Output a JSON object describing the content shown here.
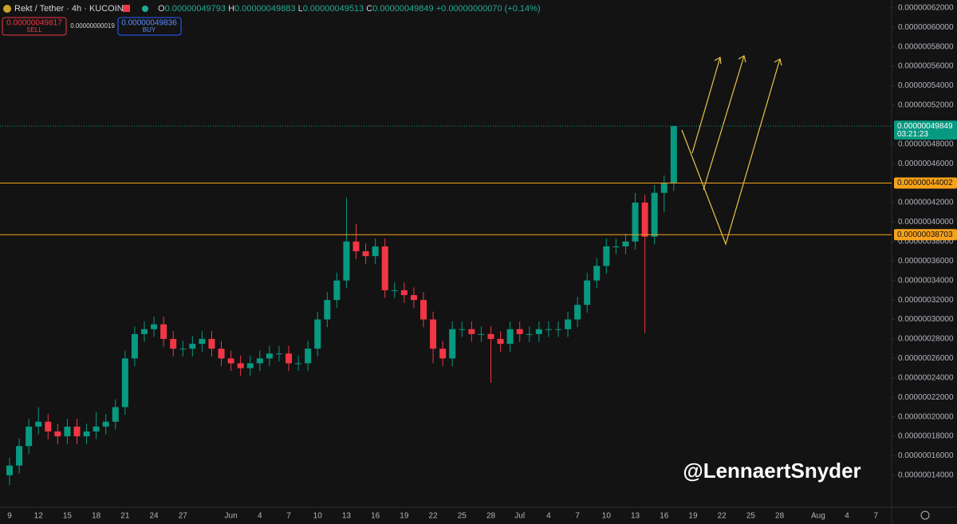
{
  "chart_data": {
    "type": "candlestick",
    "symbol": "Rekt / Tether · 4h · KUCOIN",
    "quote": [
      {
        "key": "O",
        "text": "0.00000049793"
      },
      {
        "key": "H",
        "text": "0.00000049883"
      },
      {
        "key": "L",
        "text": "0.00000049513"
      },
      {
        "key": "C",
        "text": "0.00000049849"
      }
    ],
    "change": "+0.00000000070 (+0.14%)",
    "sell": {
      "price": "0.00000049817",
      "label": "SELL"
    },
    "spread": "0.00000000019",
    "buy": {
      "price": "0.00000049836",
      "label": "BUY"
    },
    "watermark": "@LennaertSnyder",
    "up_color": "#089981",
    "down_color": "#f23645",
    "grid": false,
    "categories": [
      "9",
      null,
      null,
      "12",
      null,
      null,
      "15",
      null,
      null,
      "18",
      null,
      null,
      "21",
      null,
      null,
      "24",
      null,
      null,
      "27",
      null,
      null,
      null,
      null,
      "Jun",
      null,
      null,
      "4",
      null,
      null,
      "7",
      null,
      null,
      "10",
      null,
      null,
      "13",
      null,
      null,
      "16",
      null,
      null,
      "19",
      null,
      null,
      "22",
      null,
      null,
      "25",
      null,
      null,
      "28",
      null,
      null,
      "Jul",
      null,
      null,
      "4",
      null,
      null,
      "7",
      null,
      null,
      "10",
      null,
      null,
      "13",
      null,
      null,
      "16",
      null,
      null,
      "19",
      null,
      null,
      "22",
      null,
      null,
      "25",
      null,
      null,
      "28",
      null,
      null,
      null,
      "Aug",
      null,
      null,
      "4",
      null,
      null,
      "7"
    ],
    "open": [
      1.4e-07,
      1.5e-07,
      1.7e-07,
      1.9e-07,
      1.95e-07,
      1.85e-07,
      1.8e-07,
      1.9e-07,
      1.8e-07,
      1.85e-07,
      1.9e-07,
      1.95e-07,
      2.1e-07,
      2.6e-07,
      2.85e-07,
      2.9e-07,
      2.95e-07,
      2.8e-07,
      2.7e-07,
      2.7e-07,
      2.75e-07,
      2.8e-07,
      2.7e-07,
      2.6e-07,
      2.55e-07,
      2.5e-07,
      2.55e-07,
      2.6e-07,
      2.65e-07,
      2.65e-07,
      2.55e-07,
      2.55e-07,
      2.7e-07,
      3e-07,
      3.2e-07,
      3.4e-07,
      3.8e-07,
      3.7e-07,
      3.65e-07,
      3.75e-07,
      3.3e-07,
      3.3e-07,
      3.25e-07,
      3.2e-07,
      3e-07,
      2.7e-07,
      2.6e-07,
      2.9e-07,
      2.9e-07,
      2.85e-07,
      2.85e-07,
      2.8e-07,
      2.75e-07,
      2.9e-07,
      2.85e-07,
      2.85e-07,
      2.9e-07,
      2.9e-07,
      2.9e-07,
      3e-07,
      3.15e-07,
      3.4e-07,
      3.55e-07,
      3.75e-07,
      3.75e-07,
      3.8e-07,
      4.2e-07,
      3.85e-07,
      4.3e-07,
      4.4e-07,
      null,
      null,
      null,
      null,
      null,
      null,
      null,
      null,
      null,
      null,
      null,
      null,
      null,
      null,
      null,
      null,
      null,
      null,
      null,
      null,
      null
    ],
    "high": [
      1.58e-07,
      1.78e-07,
      1.98e-07,
      2.1e-07,
      2.03e-07,
      1.93e-07,
      1.98e-07,
      1.98e-07,
      1.93e-07,
      2.05e-07,
      2.03e-07,
      2.18e-07,
      2.68e-07,
      2.93e-07,
      2.98e-07,
      3.03e-07,
      3.03e-07,
      2.88e-07,
      2.78e-07,
      2.83e-07,
      2.88e-07,
      2.88e-07,
      2.78e-07,
      2.68e-07,
      2.63e-07,
      2.63e-07,
      2.68e-07,
      2.73e-07,
      2.73e-07,
      2.73e-07,
      2.63e-07,
      2.78e-07,
      3.08e-07,
      3.28e-07,
      3.48e-07,
      4.25e-07,
      3.98e-07,
      3.78e-07,
      3.83e-07,
      3.83e-07,
      3.38e-07,
      3.38e-07,
      3.33e-07,
      3.28e-07,
      3.08e-07,
      2.78e-07,
      2.98e-07,
      2.98e-07,
      2.98e-07,
      2.93e-07,
      2.93e-07,
      2.88e-07,
      2.98e-07,
      2.98e-07,
      2.93e-07,
      2.98e-07,
      2.98e-07,
      2.98e-07,
      3.08e-07,
      3.23e-07,
      3.48e-07,
      3.63e-07,
      3.83e-07,
      3.83e-07,
      3.88e-07,
      4.3e-07,
      4.28e-07,
      4.38e-07,
      4.48e-07,
      4.988e-07,
      null,
      null,
      null,
      null,
      null,
      null,
      null,
      null,
      null,
      null,
      null,
      null,
      null,
      null,
      null,
      null,
      null,
      null,
      null,
      null,
      null
    ],
    "low": [
      1.3e-07,
      1.42e-07,
      1.62e-07,
      1.82e-07,
      1.77e-07,
      1.72e-07,
      1.72e-07,
      1.72e-07,
      1.72e-07,
      1.77e-07,
      1.82e-07,
      1.87e-07,
      2.02e-07,
      2.52e-07,
      2.77e-07,
      2.82e-07,
      2.72e-07,
      2.62e-07,
      2.62e-07,
      2.62e-07,
      2.67e-07,
      2.62e-07,
      2.52e-07,
      2.47e-07,
      2.42e-07,
      2.42e-07,
      2.47e-07,
      2.52e-07,
      2.57e-07,
      2.47e-07,
      2.47e-07,
      2.47e-07,
      2.62e-07,
      2.92e-07,
      3.12e-07,
      3.32e-07,
      3.62e-07,
      3.57e-07,
      3.57e-07,
      3.22e-07,
      3.22e-07,
      3.17e-07,
      3.12e-07,
      2.92e-07,
      2.55e-07,
      2.52e-07,
      2.52e-07,
      2.82e-07,
      2.77e-07,
      2.77e-07,
      2.35e-07,
      2.67e-07,
      2.67e-07,
      2.77e-07,
      2.77e-07,
      2.77e-07,
      2.82e-07,
      2.82e-07,
      2.82e-07,
      2.92e-07,
      3.07e-07,
      3.32e-07,
      3.47e-07,
      3.67e-07,
      3.67e-07,
      3.72e-07,
      2.86e-07,
      3.77e-07,
      4.1e-07,
      4.32e-07,
      null,
      null,
      null,
      null,
      null,
      null,
      null,
      null,
      null,
      null,
      null,
      null,
      null,
      null,
      null,
      null,
      null,
      null,
      null,
      null,
      null
    ],
    "close": [
      1.5e-07,
      1.7e-07,
      1.9e-07,
      1.95e-07,
      1.85e-07,
      1.8e-07,
      1.9e-07,
      1.8e-07,
      1.85e-07,
      1.9e-07,
      1.95e-07,
      2.1e-07,
      2.6e-07,
      2.85e-07,
      2.9e-07,
      2.95e-07,
      2.8e-07,
      2.7e-07,
      2.7e-07,
      2.75e-07,
      2.8e-07,
      2.7e-07,
      2.6e-07,
      2.55e-07,
      2.5e-07,
      2.55e-07,
      2.6e-07,
      2.65e-07,
      2.65e-07,
      2.55e-07,
      2.55e-07,
      2.7e-07,
      3e-07,
      3.2e-07,
      3.4e-07,
      3.8e-07,
      3.7e-07,
      3.65e-07,
      3.75e-07,
      3.3e-07,
      3.3e-07,
      3.25e-07,
      3.2e-07,
      3e-07,
      2.7e-07,
      2.6e-07,
      2.9e-07,
      2.9e-07,
      2.85e-07,
      2.85e-07,
      2.8e-07,
      2.75e-07,
      2.9e-07,
      2.85e-07,
      2.85e-07,
      2.9e-07,
      2.9e-07,
      2.9e-07,
      3e-07,
      3.15e-07,
      3.4e-07,
      3.55e-07,
      3.75e-07,
      3.75e-07,
      3.8e-07,
      4.2e-07,
      3.85e-07,
      4.3e-07,
      4.4e-07,
      4.985e-07,
      null,
      null,
      null,
      null,
      null,
      null,
      null,
      null,
      null,
      null,
      null,
      null,
      null,
      null,
      null,
      null,
      null,
      null,
      null,
      null,
      null
    ],
    "ylim": [
      1.08e-07,
      6.28e-07
    ],
    "yticks": [
      {
        "value": 1.4e-07,
        "label": "0.00000014000"
      },
      {
        "value": 1.6e-07,
        "label": "0.00000016000"
      },
      {
        "value": 1.8e-07,
        "label": "0.00000018000"
      },
      {
        "value": 2e-07,
        "label": "0.00000020000"
      },
      {
        "value": 2.2e-07,
        "label": "0.00000022000"
      },
      {
        "value": 2.4e-07,
        "label": "0.00000024000"
      },
      {
        "value": 2.6e-07,
        "label": "0.00000026000"
      },
      {
        "value": 2.8e-07,
        "label": "0.00000028000"
      },
      {
        "value": 3e-07,
        "label": "0.00000030000"
      },
      {
        "value": 3.2e-07,
        "label": "0.00000032000"
      },
      {
        "value": 3.4e-07,
        "label": "0.00000034000"
      },
      {
        "value": 3.6e-07,
        "label": "0.00000036000"
      },
      {
        "value": 3.8e-07,
        "label": "0.00000038000"
      },
      {
        "value": 4e-07,
        "label": "0.00000040000"
      },
      {
        "value": 4.2e-07,
        "label": "0.00000042000"
      },
      {
        "value": 4.6e-07,
        "label": "0.00000046000"
      },
      {
        "value": 4.8e-07,
        "label": "0.00000048000"
      },
      {
        "value": 5.2e-07,
        "label": "0.00000052000"
      },
      {
        "value": 5.4e-07,
        "label": "0.00000054000"
      },
      {
        "value": 5.6e-07,
        "label": "0.00000056000"
      },
      {
        "value": 5.8e-07,
        "label": "0.00000058000"
      },
      {
        "value": 6e-07,
        "label": "0.00000060000"
      },
      {
        "value": 6.2e-07,
        "label": "0.00000062000"
      }
    ],
    "levels": [
      {
        "value": 4.4002e-07,
        "label": "0.00000044002",
        "color": "#f7a21b"
      },
      {
        "value": 3.8703e-07,
        "label": "0.00000038703",
        "color": "#f7a21b"
      }
    ],
    "last_price": {
      "value": 4.9849e-07,
      "label": "0.00000049849",
      "countdown": "03:21:23"
    }
  }
}
